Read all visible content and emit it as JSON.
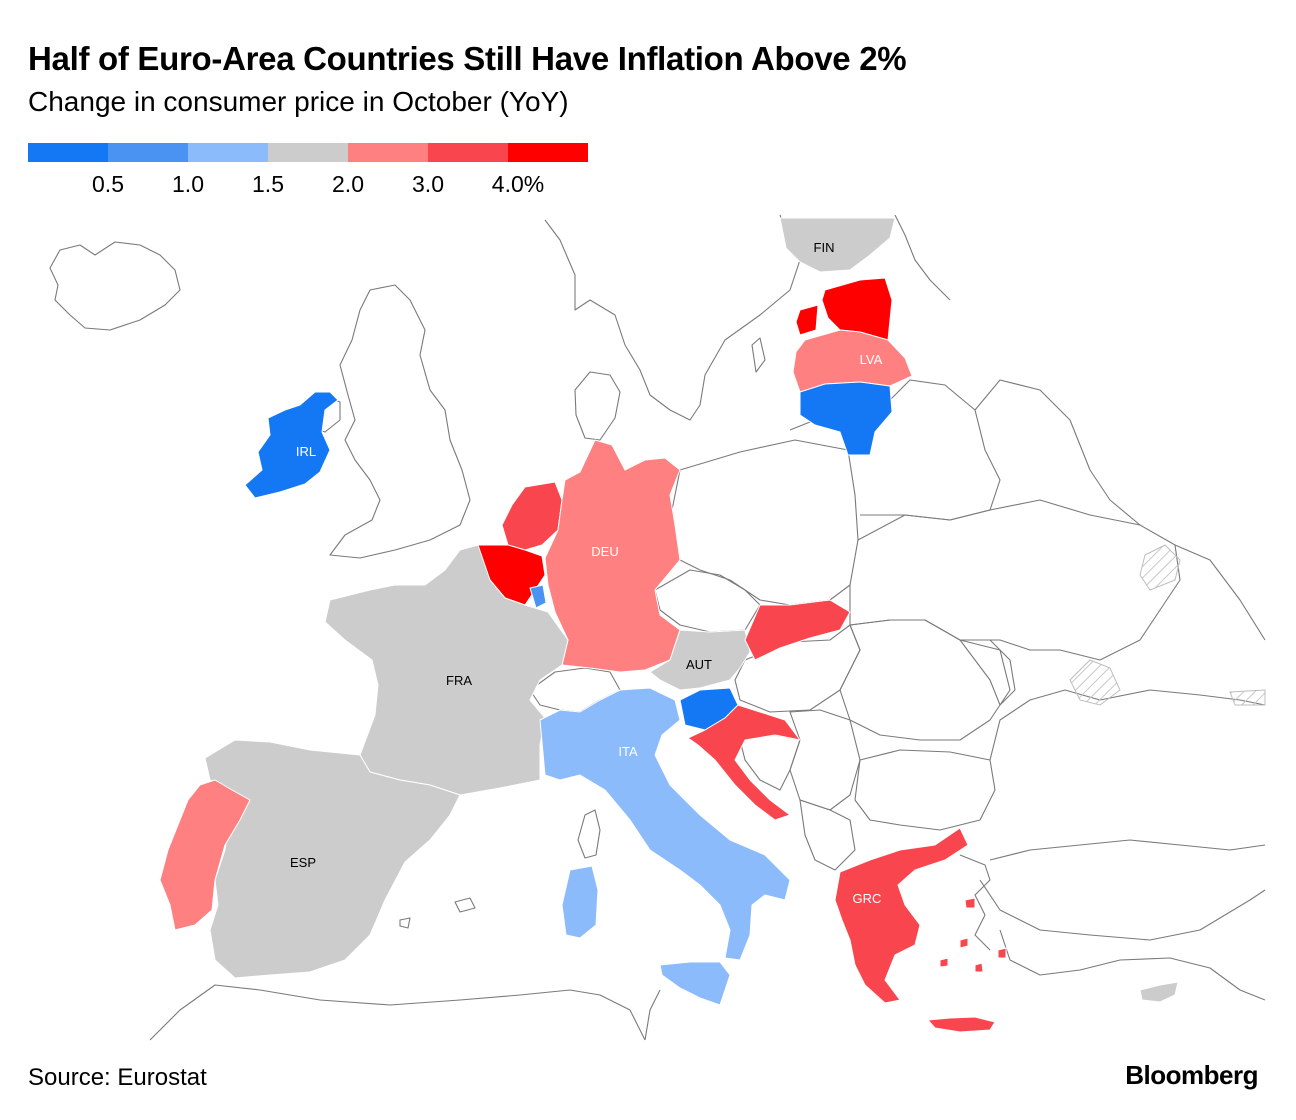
{
  "header": {
    "title": "Half of Euro-Area Countries Still Have Inflation Above 2%",
    "subtitle": "Change in consumer price in October (YoY)"
  },
  "legend": {
    "bins": [
      {
        "color": "#1478f5"
      },
      {
        "color": "#4a93f3"
      },
      {
        "color": "#8bbbfb"
      },
      {
        "color": "#cccccc"
      },
      {
        "color": "#ff8080"
      },
      {
        "color": "#f9454e"
      },
      {
        "color": "#ff0000"
      }
    ],
    "ticks": [
      "0.5",
      "1.0",
      "1.5",
      "2.0",
      "3.0",
      "4.0%"
    ]
  },
  "map": {
    "countries": [
      {
        "code": "IRL",
        "label": "IRL",
        "color": "#1478f5"
      },
      {
        "code": "DEU",
        "label": "DEU",
        "color": "#ff8080"
      },
      {
        "code": "FRA",
        "label": "FRA",
        "color": "#cccccc"
      },
      {
        "code": "ESP",
        "label": "ESP",
        "color": "#cccccc"
      },
      {
        "code": "ITA",
        "label": "ITA",
        "color": "#8bbbfb"
      },
      {
        "code": "AUT",
        "label": "AUT",
        "color": "#cccccc"
      },
      {
        "code": "GRC",
        "label": "GRC",
        "color": "#f9454e"
      },
      {
        "code": "FIN",
        "label": "FIN",
        "color": "#cccccc"
      },
      {
        "code": "LVA",
        "label": "LVA",
        "color": "#ff8080"
      },
      {
        "code": "EST",
        "label": "",
        "color": "#ff0000"
      },
      {
        "code": "LTU",
        "label": "",
        "color": "#1478f5"
      },
      {
        "code": "NLD",
        "label": "",
        "color": "#f9454e"
      },
      {
        "code": "BEL",
        "label": "",
        "color": "#ff0000"
      },
      {
        "code": "LUX",
        "label": "",
        "color": "#4a93f3"
      },
      {
        "code": "PRT",
        "label": "",
        "color": "#ff8080"
      },
      {
        "code": "SVK",
        "label": "",
        "color": "#f9454e"
      },
      {
        "code": "SVN",
        "label": "",
        "color": "#1478f5"
      },
      {
        "code": "HRV",
        "label": "",
        "color": "#f9454e"
      },
      {
        "code": "CYP",
        "label": "",
        "color": "#cccccc"
      }
    ]
  },
  "footer": {
    "source": "Source: Eurostat",
    "brand": "Bloomberg"
  }
}
